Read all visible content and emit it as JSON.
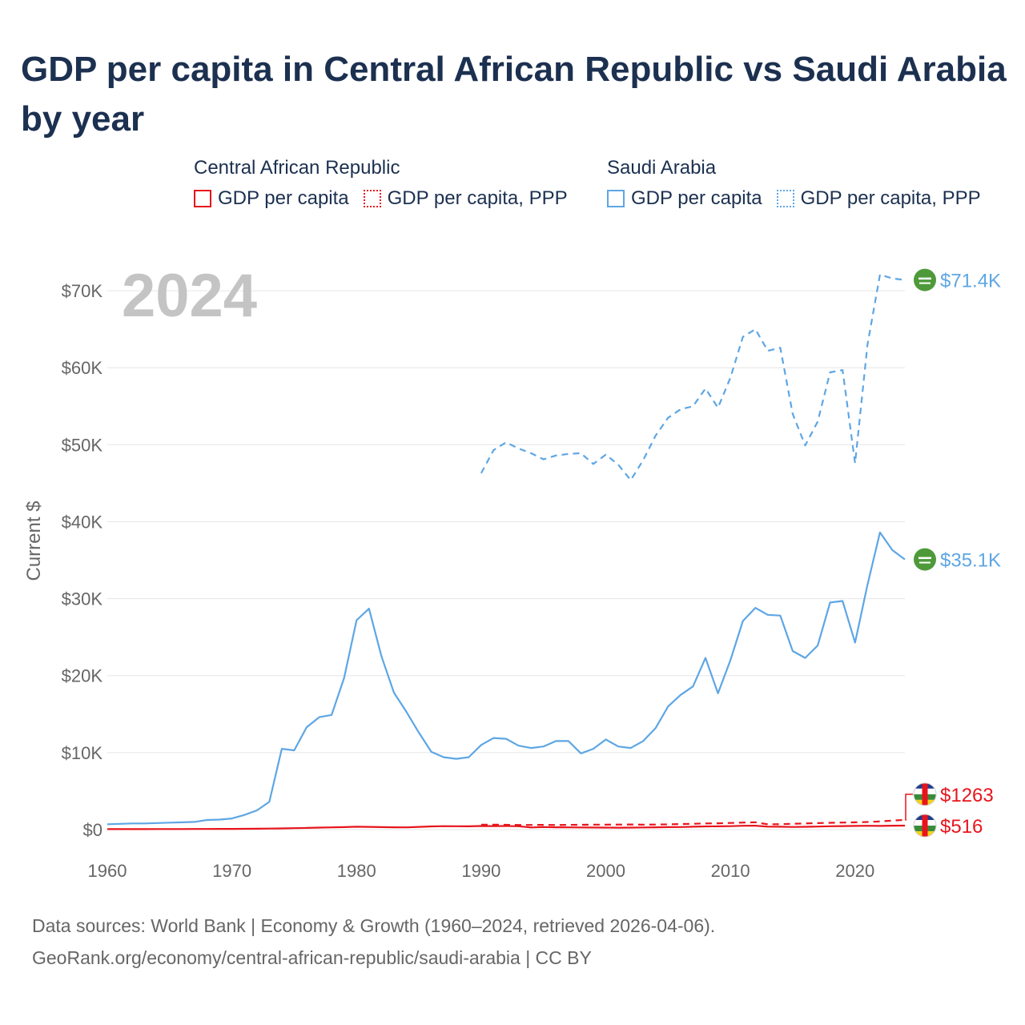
{
  "title": "GDP per capita in Central African Republic vs Saudi Arabia by year",
  "legend": {
    "groups": [
      {
        "name": "Central African Republic",
        "color": "#e8141c",
        "items": [
          {
            "label": "GDP per capita",
            "style": "solid"
          },
          {
            "label": "GDP per capita, PPP",
            "style": "dotted"
          }
        ]
      },
      {
        "name": "Saudi Arabia",
        "color": "#5ea6e4",
        "items": [
          {
            "label": "GDP per capita",
            "style": "solid"
          },
          {
            "label": "GDP per capita, PPP",
            "style": "dotted"
          }
        ]
      }
    ]
  },
  "year_label": "2024",
  "footer": {
    "line1": "Data sources: World Bank | Economy & Growth (1960–2024, retrieved 2026-04-06).",
    "line2": "GeoRank.org/economy/central-african-republic/saudi-arabia | CC BY"
  },
  "chart_data": {
    "type": "line",
    "title": "GDP per capita in Central African Republic vs Saudi Arabia by year",
    "xlabel": "",
    "ylabel": "Current $",
    "xlim": [
      1960,
      2024
    ],
    "ylim": [
      0,
      75000
    ],
    "x_ticks": [
      1960,
      1970,
      1980,
      1990,
      2000,
      2010,
      2020
    ],
    "y_ticks": [
      0,
      10000,
      20000,
      30000,
      40000,
      50000,
      60000,
      70000
    ],
    "y_tick_labels": [
      "$0",
      "$10K",
      "$20K",
      "$30K",
      "$40K",
      "$50K",
      "$60K",
      "$70K"
    ],
    "grid": true,
    "legend_position": "top",
    "series": [
      {
        "name": "Saudi Arabia GDP per capita, PPP",
        "color": "#5ea6e4",
        "dash": "dashed",
        "end_label": "$71.4K",
        "x": [
          1990,
          1991,
          1992,
          1993,
          1994,
          1995,
          1996,
          1997,
          1998,
          1999,
          2000,
          2001,
          2002,
          2003,
          2004,
          2005,
          2006,
          2007,
          2008,
          2009,
          2010,
          2011,
          2012,
          2013,
          2014,
          2015,
          2016,
          2017,
          2018,
          2019,
          2020,
          2021,
          2022,
          2023,
          2024
        ],
        "values": [
          46300,
          49300,
          50300,
          49500,
          48900,
          48100,
          48600,
          48800,
          48900,
          47500,
          48700,
          47400,
          45400,
          48000,
          51200,
          53500,
          54600,
          55000,
          57300,
          54800,
          58700,
          64000,
          65000,
          62200,
          62600,
          54000,
          49900,
          53000,
          59400,
          59700,
          47600,
          63000,
          72100,
          71600,
          71400
        ]
      },
      {
        "name": "Saudi Arabia GDP per capita",
        "color": "#5ea6e4",
        "dash": "solid",
        "end_label": "$35.1K",
        "x": [
          1960,
          1961,
          1962,
          1963,
          1964,
          1965,
          1966,
          1967,
          1968,
          1969,
          1970,
          1971,
          1972,
          1973,
          1974,
          1975,
          1976,
          1977,
          1978,
          1979,
          1980,
          1981,
          1982,
          1983,
          1984,
          1985,
          1986,
          1987,
          1988,
          1989,
          1990,
          1991,
          1992,
          1993,
          1994,
          1995,
          1996,
          1997,
          1998,
          1999,
          2000,
          2001,
          2002,
          2003,
          2004,
          2005,
          2006,
          2007,
          2008,
          2009,
          2010,
          2011,
          2012,
          2013,
          2014,
          2015,
          2016,
          2017,
          2018,
          2019,
          2020,
          2021,
          2022,
          2023,
          2024
        ],
        "values": [
          700,
          750,
          800,
          800,
          850,
          900,
          950,
          1000,
          1250,
          1300,
          1450,
          1900,
          2500,
          3600,
          10500,
          10300,
          13300,
          14600,
          14900,
          19700,
          27200,
          28700,
          22500,
          17800,
          15300,
          12600,
          10100,
          9400,
          9200,
          9400,
          11000,
          11900,
          11800,
          10900,
          10600,
          10800,
          11500,
          11500,
          9900,
          10500,
          11700,
          10800,
          10600,
          11500,
          13200,
          16000,
          17500,
          18600,
          22300,
          17700,
          22000,
          27100,
          28800,
          27900,
          27800,
          23200,
          22300,
          23900,
          29500,
          29700,
          24300,
          31800,
          38600,
          36300,
          35100
        ]
      },
      {
        "name": "Central African Republic GDP per capita, PPP",
        "color": "#e8141c",
        "dash": "dashed",
        "end_label": "$1263",
        "x": [
          1990,
          1991,
          1992,
          1993,
          1994,
          1995,
          1996,
          1997,
          1998,
          1999,
          2000,
          2001,
          2002,
          2003,
          2004,
          2005,
          2006,
          2007,
          2008,
          2009,
          2010,
          2011,
          2012,
          2013,
          2014,
          2015,
          2016,
          2017,
          2018,
          2019,
          2020,
          2021,
          2022,
          2023,
          2024
        ],
        "values": [
          650,
          640,
          620,
          600,
          600,
          610,
          590,
          610,
          620,
          640,
          650,
          660,
          670,
          650,
          660,
          690,
          720,
          760,
          800,
          820,
          860,
          920,
          960,
          690,
          710,
          760,
          800,
          840,
          880,
          920,
          950,
          990,
          1060,
          1180,
          1263
        ]
      },
      {
        "name": "Central African Republic GDP per capita",
        "color": "#e8141c",
        "dash": "solid",
        "end_label": "$516",
        "x": [
          1960,
          1961,
          1962,
          1963,
          1964,
          1965,
          1966,
          1967,
          1968,
          1969,
          1970,
          1971,
          1972,
          1973,
          1974,
          1975,
          1976,
          1977,
          1978,
          1979,
          1980,
          1981,
          1982,
          1983,
          1984,
          1985,
          1986,
          1987,
          1988,
          1989,
          1990,
          1991,
          1992,
          1993,
          1994,
          1995,
          1996,
          1997,
          1998,
          1999,
          2000,
          2001,
          2002,
          2003,
          2004,
          2005,
          2006,
          2007,
          2008,
          2009,
          2010,
          2011,
          2012,
          2013,
          2014,
          2015,
          2016,
          2017,
          2018,
          2019,
          2020,
          2021,
          2022,
          2023,
          2024
        ],
        "values": [
          60,
          62,
          64,
          66,
          68,
          72,
          76,
          80,
          85,
          90,
          95,
          105,
          115,
          140,
          160,
          190,
          220,
          260,
          290,
          320,
          370,
          350,
          320,
          300,
          290,
          350,
          420,
          450,
          440,
          430,
          470,
          460,
          470,
          440,
          280,
          330,
          300,
          290,
          280,
          270,
          260,
          250,
          260,
          280,
          300,
          320,
          330,
          370,
          420,
          430,
          450,
          500,
          510,
          380,
          370,
          340,
          360,
          400,
          440,
          460,
          480,
          500,
          480,
          505,
          516
        ]
      }
    ]
  }
}
